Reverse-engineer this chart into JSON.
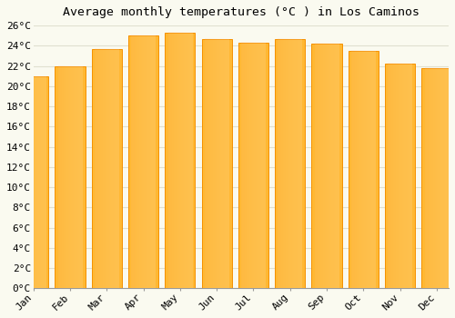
{
  "title": "Average monthly temperatures (°C ) in Los Caminos",
  "months": [
    "Jan",
    "Feb",
    "Mar",
    "Apr",
    "May",
    "Jun",
    "Jul",
    "Aug",
    "Sep",
    "Oct",
    "Nov",
    "Dec"
  ],
  "values": [
    21.0,
    22.0,
    23.7,
    25.0,
    25.3,
    24.7,
    24.3,
    24.7,
    24.2,
    23.5,
    22.2,
    21.8
  ],
  "bar_color_center": "#FFB833",
  "bar_color_edge": "#F59000",
  "background_color": "#FAFAF0",
  "plot_bg_color": "#FAFAF0",
  "grid_color": "#E0E0D0",
  "ylim": [
    0,
    26
  ],
  "ytick_step": 2,
  "title_fontsize": 9.5,
  "tick_fontsize": 8,
  "font_family": "monospace"
}
